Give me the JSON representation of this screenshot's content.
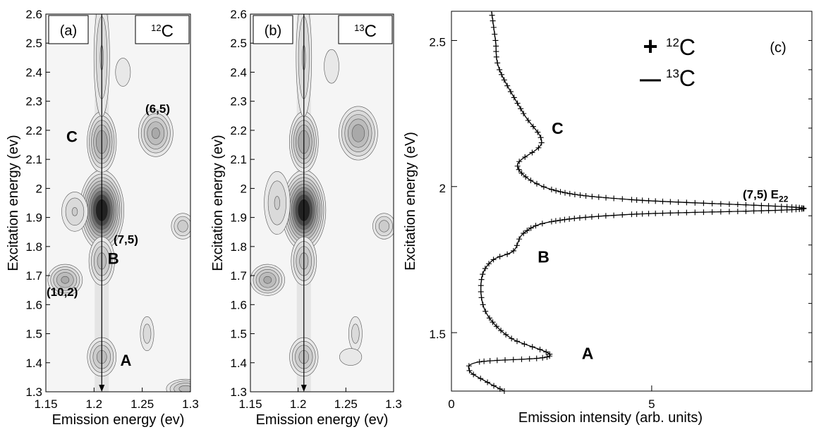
{
  "chart_data": [
    {
      "type": "heatmap",
      "panel": "(a)",
      "isotope_label": {
        "sup": "12",
        "base": "C"
      },
      "xlabel": "Emission energy (ev)",
      "ylabel": "Excitation energy (ev)",
      "xlim": [
        1.15,
        1.3
      ],
      "ylim": [
        1.3,
        2.6
      ],
      "xticks": [
        "1.15",
        "1.2",
        "1.25",
        "1.3"
      ],
      "yticks": [
        "1.3",
        "1.4",
        "1.5",
        "1.6",
        "1.7",
        "1.8",
        "1.9",
        "2",
        "2.1",
        "2.2",
        "2.3",
        "2.4",
        "2.5",
        "2.6"
      ],
      "peaks": [
        {
          "x": 1.208,
          "y": 1.925,
          "amp": 14,
          "sx": 0.01,
          "sy": 0.06
        },
        {
          "x": 1.208,
          "y": 2.16,
          "amp": 6,
          "sx": 0.008,
          "sy": 0.055
        },
        {
          "x": 1.208,
          "y": 1.75,
          "amp": 4,
          "sx": 0.008,
          "sy": 0.05
        },
        {
          "x": 1.208,
          "y": 1.42,
          "amp": 4,
          "sx": 0.009,
          "sy": 0.04
        },
        {
          "x": 1.208,
          "y": 2.45,
          "amp": 2.5,
          "sx": 0.006,
          "sy": 0.15
        },
        {
          "x": 1.264,
          "y": 2.19,
          "amp": 5,
          "sx": 0.01,
          "sy": 0.045
        },
        {
          "x": 1.17,
          "y": 1.685,
          "amp": 5,
          "sx": 0.01,
          "sy": 0.03
        },
        {
          "x": 1.292,
          "y": 1.87,
          "amp": 3,
          "sx": 0.008,
          "sy": 0.03
        },
        {
          "x": 1.18,
          "y": 1.92,
          "amp": 2.5,
          "sx": 0.01,
          "sy": 0.05
        },
        {
          "x": 1.255,
          "y": 1.5,
          "amp": 2,
          "sx": 0.006,
          "sy": 0.05
        },
        {
          "x": 1.295,
          "y": 1.31,
          "amp": 4,
          "sx": 0.012,
          "sy": 0.02
        },
        {
          "x": 1.23,
          "y": 2.4,
          "amp": 1.6,
          "sx": 0.008,
          "sy": 0.05
        }
      ],
      "annotations": [
        {
          "text": "C",
          "x": 1.177,
          "y": 2.16
        },
        {
          "text": "(6,5)",
          "x": 1.266,
          "y": 2.26
        },
        {
          "text": "(7,5)",
          "x": 1.233,
          "y": 1.81
        },
        {
          "text": "B",
          "x": 1.22,
          "y": 1.74
        },
        {
          "text": "(10,2)",
          "x": 1.167,
          "y": 1.63
        },
        {
          "text": "A",
          "x": 1.233,
          "y": 1.39
        }
      ],
      "arrow_x": 1.208
    },
    {
      "type": "heatmap",
      "panel": "(b)",
      "isotope_label": {
        "sup": "13",
        "base": "C"
      },
      "xlabel": "Emission energy (ev)",
      "ylabel": "Excitation energy (ev)",
      "xlim": [
        1.15,
        1.3
      ],
      "ylim": [
        1.3,
        2.6
      ],
      "xticks": [
        "1.15",
        "1.2",
        "1.25",
        "1.3"
      ],
      "yticks": [
        "1.3",
        "1.4",
        "1.5",
        "1.6",
        "1.7",
        "1.8",
        "1.9",
        "2",
        "2.1",
        "2.2",
        "2.3",
        "2.4",
        "2.5",
        "2.6"
      ],
      "peaks": [
        {
          "x": 1.206,
          "y": 1.925,
          "amp": 14,
          "sx": 0.01,
          "sy": 0.06
        },
        {
          "x": 1.206,
          "y": 2.16,
          "amp": 6,
          "sx": 0.008,
          "sy": 0.055
        },
        {
          "x": 1.206,
          "y": 1.75,
          "amp": 4,
          "sx": 0.008,
          "sy": 0.05
        },
        {
          "x": 1.206,
          "y": 1.42,
          "amp": 4,
          "sx": 0.009,
          "sy": 0.04
        },
        {
          "x": 1.206,
          "y": 2.45,
          "amp": 2.5,
          "sx": 0.006,
          "sy": 0.15
        },
        {
          "x": 1.263,
          "y": 2.19,
          "amp": 5.5,
          "sx": 0.011,
          "sy": 0.05
        },
        {
          "x": 1.168,
          "y": 1.685,
          "amp": 5,
          "sx": 0.01,
          "sy": 0.03
        },
        {
          "x": 1.29,
          "y": 1.87,
          "amp": 3,
          "sx": 0.008,
          "sy": 0.03
        },
        {
          "x": 1.178,
          "y": 1.95,
          "amp": 2.5,
          "sx": 0.01,
          "sy": 0.08
        },
        {
          "x": 1.26,
          "y": 1.5,
          "amp": 2,
          "sx": 0.006,
          "sy": 0.05
        },
        {
          "x": 1.255,
          "y": 1.42,
          "amp": 1.6,
          "sx": 0.012,
          "sy": 0.03
        },
        {
          "x": 1.235,
          "y": 2.42,
          "amp": 1.6,
          "sx": 0.008,
          "sy": 0.06
        }
      ],
      "annotations": [],
      "arrow_x": 1.206
    },
    {
      "type": "line",
      "panel": "(c)",
      "xlabel": "Emission intensity (arb. units)",
      "ylabel": "Excitation energy (eV)",
      "xlim": [
        0,
        9
      ],
      "ylim": [
        1.3,
        2.6
      ],
      "xticks": [
        "0",
        "5"
      ],
      "yticks": [
        "1.5",
        "2",
        "2.5"
      ],
      "series": [
        {
          "name": "12C",
          "marker": "+",
          "x": [
            1.32,
            0.9,
            0.45,
            0.7,
            2.45,
            1.5,
            0.95,
            0.75,
            0.78,
            1.05,
            1.55,
            1.8,
            2.5,
            4.5,
            8.8,
            4.5,
            2.5,
            1.65,
            2.25,
            1.8,
            1.2,
            1.1,
            1.0
          ],
          "y": [
            1.3,
            1.33,
            1.37,
            1.4,
            1.42,
            1.48,
            1.55,
            1.62,
            1.7,
            1.75,
            1.78,
            1.84,
            1.88,
            1.905,
            1.925,
            1.955,
            1.99,
            2.07,
            2.15,
            2.25,
            2.4,
            2.5,
            2.6
          ]
        },
        {
          "name": "13C",
          "marker": "line",
          "x": [
            1.32,
            0.9,
            0.45,
            0.7,
            2.45,
            1.5,
            0.95,
            0.75,
            0.78,
            1.05,
            1.55,
            1.8,
            2.5,
            4.5,
            8.8,
            4.5,
            2.5,
            1.65,
            2.25,
            1.8,
            1.2,
            1.1,
            1.0
          ],
          "y": [
            1.3,
            1.33,
            1.37,
            1.4,
            1.42,
            1.48,
            1.55,
            1.62,
            1.7,
            1.75,
            1.78,
            1.84,
            1.88,
            1.905,
            1.925,
            1.955,
            1.99,
            2.07,
            2.15,
            2.25,
            2.4,
            2.5,
            2.6
          ]
        }
      ],
      "legend": [
        {
          "symbol": "+",
          "sup": "12",
          "base": "C"
        },
        {
          "symbol": "—",
          "sup": "13",
          "base": "C"
        }
      ],
      "annotations": [
        {
          "text": "C",
          "x": 2.65,
          "y": 2.18
        },
        {
          "text": "B",
          "x": 2.3,
          "y": 1.74
        },
        {
          "text": "A",
          "x": 3.4,
          "y": 1.41
        }
      ],
      "peak_label": {
        "base": "(7,5) E",
        "sub": "22"
      }
    }
  ]
}
